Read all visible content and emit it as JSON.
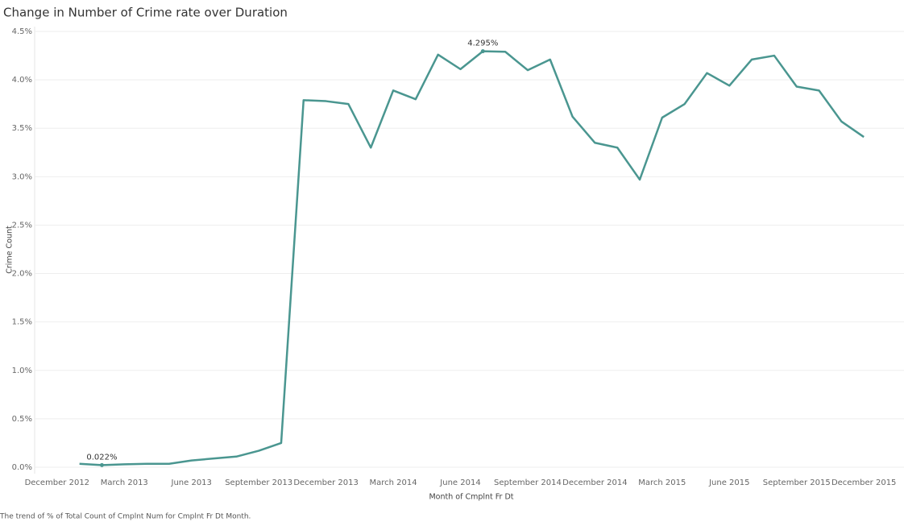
{
  "chart_data": {
    "type": "line",
    "title": "Change in Number of Crime rate over Duration",
    "x_label": "Month of Cmplnt Fr Dt",
    "y_label": "Crime Count",
    "note": "The trend of % of Total Count of Cmplnt Num for Cmplnt Fr Dt Month.",
    "x": [
      "2013-01",
      "2013-02",
      "2013-03",
      "2013-04",
      "2013-05",
      "2013-06",
      "2013-07",
      "2013-08",
      "2013-09",
      "2013-10",
      "2013-11",
      "2013-12",
      "2014-01",
      "2014-02",
      "2014-03",
      "2014-04",
      "2014-05",
      "2014-06",
      "2014-07",
      "2014-08",
      "2014-09",
      "2014-10",
      "2014-11",
      "2014-12",
      "2015-01",
      "2015-02",
      "2015-03",
      "2015-04",
      "2015-05",
      "2015-06",
      "2015-07",
      "2015-08",
      "2015-09",
      "2015-10",
      "2015-11",
      "2015-12"
    ],
    "series": [
      {
        "name": "Crime Count",
        "color": "#4a9690",
        "values": [
          0.035,
          0.022,
          0.03,
          0.035,
          0.035,
          0.07,
          0.09,
          0.11,
          0.17,
          0.25,
          3.79,
          3.78,
          3.75,
          3.3,
          3.89,
          3.8,
          4.26,
          4.11,
          4.295,
          4.29,
          4.1,
          4.21,
          3.62,
          3.35,
          3.3,
          2.97,
          3.61,
          3.75,
          4.07,
          3.94,
          4.21,
          4.25,
          3.93,
          3.89,
          3.57,
          3.41
        ],
        "value_labels": [
          null,
          "0.022%",
          null,
          null,
          null,
          null,
          null,
          null,
          null,
          null,
          null,
          null,
          null,
          null,
          null,
          null,
          null,
          null,
          "4.295%",
          null,
          null,
          null,
          null,
          null,
          null,
          null,
          null,
          null,
          null,
          null,
          null,
          null,
          null,
          null,
          null,
          null
        ]
      }
    ],
    "xlim": [
      "2012-11",
      "2016-01"
    ],
    "xticks": [
      {
        "value": "2012-12",
        "label": "December 2012"
      },
      {
        "value": "2013-03",
        "label": "March 2013"
      },
      {
        "value": "2013-06",
        "label": "June 2013"
      },
      {
        "value": "2013-09",
        "label": "September 2013"
      },
      {
        "value": "2013-12",
        "label": "December 2013"
      },
      {
        "value": "2014-03",
        "label": "March 2014"
      },
      {
        "value": "2014-06",
        "label": "June 2014"
      },
      {
        "value": "2014-09",
        "label": "September 2014"
      },
      {
        "value": "2014-12",
        "label": "December 2014"
      },
      {
        "value": "2015-03",
        "label": "March 2015"
      },
      {
        "value": "2015-06",
        "label": "June 2015"
      },
      {
        "value": "2015-09",
        "label": "September 2015"
      },
      {
        "value": "2015-12",
        "label": "December 2015"
      }
    ],
    "ylim": [
      0,
      4.5
    ],
    "yticks": [
      {
        "value": 0,
        "label": "0.0%"
      },
      {
        "value": 0.5,
        "label": "0.5%"
      },
      {
        "value": 1,
        "label": "1.0%"
      },
      {
        "value": 1.5,
        "label": "1.5%"
      },
      {
        "value": 2,
        "label": "2.0%"
      },
      {
        "value": 2.5,
        "label": "2.5%"
      },
      {
        "value": 3,
        "label": "3.0%"
      },
      {
        "value": 3.5,
        "label": "3.5%"
      },
      {
        "value": 4,
        "label": "4.0%"
      },
      {
        "value": 4.5,
        "label": "4.5%"
      }
    ],
    "grid": true
  }
}
